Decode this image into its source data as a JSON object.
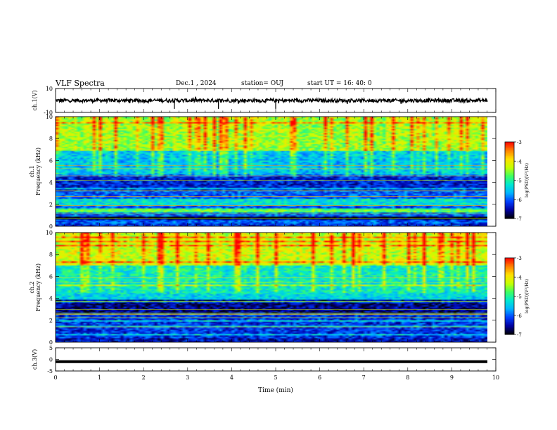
{
  "header": {
    "title": "VLF Spectra",
    "date": "Dec.1 , 2024",
    "station": "station= OUJ",
    "start": "start UT =  16: 40: 0"
  },
  "colors": {
    "background": "#ffffff",
    "axis": "#000000",
    "colormap": [
      "#000000",
      "#0000a0",
      "#0040ff",
      "#00b4ff",
      "#00e8d0",
      "#40ff60",
      "#c8ff00",
      "#ffe000",
      "#ff8000",
      "#ff0000",
      "#ffffff"
    ]
  },
  "chart_data": [
    {
      "type": "line",
      "panel": "ch1-waveform",
      "ylabel": "ch.1(V)",
      "yticks": [
        "10",
        "-10"
      ],
      "ylim": [
        -10,
        10
      ],
      "xlim": [
        0,
        10
      ],
      "trace_level": 0,
      "trace_spread": 1.5,
      "note_spikes_min": [
        2.7,
        3.7,
        5.0
      ]
    },
    {
      "type": "heatmap",
      "panel": "ch1-spectrogram",
      "ylabel": "ch.1\nFrequency (kHz)",
      "ylabel_line1": "ch.1",
      "ylabel_line2": "Frequency (kHz)",
      "yticks": [
        "0",
        "2",
        "4",
        "6",
        "8",
        "10"
      ],
      "ylim": [
        0,
        10
      ],
      "xlim": [
        0,
        9.83
      ],
      "colorbar": {
        "label": "log(PSD)(V²/Hz)",
        "ticks": [
          "-3",
          "-4",
          "-5",
          "-6",
          "-7"
        ],
        "range": [
          -7,
          -3
        ]
      },
      "bands_khz": [
        {
          "f0": 0.0,
          "f1": 0.2,
          "level": -6.2
        },
        {
          "f0": 0.5,
          "f1": 0.9,
          "level": -7.0
        },
        {
          "f0": 1.3,
          "f1": 1.6,
          "level": -4.8
        },
        {
          "f0": 1.9,
          "f1": 2.4,
          "level": -5.3
        },
        {
          "f0": 3.3,
          "f1": 4.6,
          "level": -6.3
        },
        {
          "f0": 4.8,
          "f1": 6.9,
          "level": -5.6
        },
        {
          "f0": 6.9,
          "f1": 10.0,
          "level": -4.6
        }
      ]
    },
    {
      "type": "heatmap",
      "panel": "ch2-spectrogram",
      "ylabel": "ch.2\nFrequency (kHz)",
      "ylabel_line1": "ch.2",
      "ylabel_line2": "Frequency (kHz)",
      "yticks": [
        "0",
        "2",
        "4",
        "6",
        "8",
        "10"
      ],
      "ylim": [
        0,
        10
      ],
      "xlim": [
        0,
        9.83
      ],
      "colorbar": {
        "label": "log(PSD)(V²/Hz)",
        "ticks": [
          "-3",
          "-4",
          "-5",
          "-6",
          "-7"
        ],
        "range": [
          -7,
          -3
        ]
      },
      "bands_khz": [
        {
          "f0": 0.0,
          "f1": 0.4,
          "level": -6.4
        },
        {
          "f0": 0.4,
          "f1": 2.6,
          "level": -6.2
        },
        {
          "f0": 2.6,
          "f1": 3.9,
          "level": -6.6
        },
        {
          "f0": 3.9,
          "f1": 4.4,
          "level": -5.4
        },
        {
          "f0": 4.4,
          "f1": 7.0,
          "level": -5.3
        },
        {
          "f0": 7.0,
          "f1": 10.0,
          "level": -4.4
        }
      ]
    },
    {
      "type": "line",
      "panel": "ch3-waveform",
      "ylabel": "ch.3(V)",
      "yticks": [
        "5",
        "0",
        "-5"
      ],
      "ylim": [
        -5,
        5
      ],
      "xlim": [
        0,
        10
      ],
      "trace_level": -1.0,
      "xlabel": "Time (min)",
      "xticks": [
        "0",
        "1",
        "2",
        "3",
        "4",
        "5",
        "6",
        "7",
        "8",
        "9",
        "10"
      ]
    }
  ]
}
